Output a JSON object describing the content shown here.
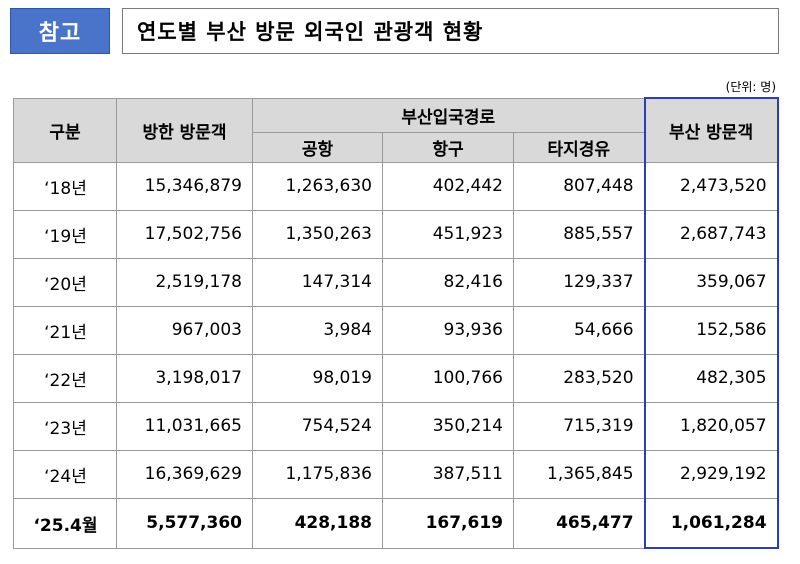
{
  "header": {
    "badge": "참고",
    "title": "연도별 부산 방문 외국인 관광객 현황"
  },
  "unit": "(단위: 명)",
  "table": {
    "columns": {
      "category": "구분",
      "korea_visitors": "방한 방문객",
      "route_group": "부산입국경로",
      "airport": "공항",
      "port": "항구",
      "other": "타지경유",
      "busan_visitors": "부산 방문객"
    },
    "rows": [
      {
        "year": "‘18년",
        "korea": "15,346,879",
        "airport": "1,263,630",
        "port": "402,442",
        "other": "807,448",
        "busan": "2,473,520"
      },
      {
        "year": "‘19년",
        "korea": "17,502,756",
        "airport": "1,350,263",
        "port": "451,923",
        "other": "885,557",
        "busan": "2,687,743"
      },
      {
        "year": "‘20년",
        "korea": "2,519,178",
        "airport": "147,314",
        "port": "82,416",
        "other": "129,337",
        "busan": "359,067"
      },
      {
        "year": "‘21년",
        "korea": "967,003",
        "airport": "3,984",
        "port": "93,936",
        "other": "54,666",
        "busan": "152,586"
      },
      {
        "year": "‘22년",
        "korea": "3,198,017",
        "airport": "98,019",
        "port": "100,766",
        "other": "283,520",
        "busan": "482,305"
      },
      {
        "year": "‘23년",
        "korea": "11,031,665",
        "airport": "754,524",
        "port": "350,214",
        "other": "715,319",
        "busan": "1,820,057"
      },
      {
        "year": "‘24년",
        "korea": "16,369,629",
        "airport": "1,175,836",
        "port": "387,511",
        "other": "1,365,845",
        "busan": "2,929,192"
      },
      {
        "year": "‘25.4월",
        "korea": "5,577,360",
        "airport": "428,188",
        "port": "167,619",
        "other": "465,477",
        "busan": "1,061,284"
      }
    ]
  }
}
